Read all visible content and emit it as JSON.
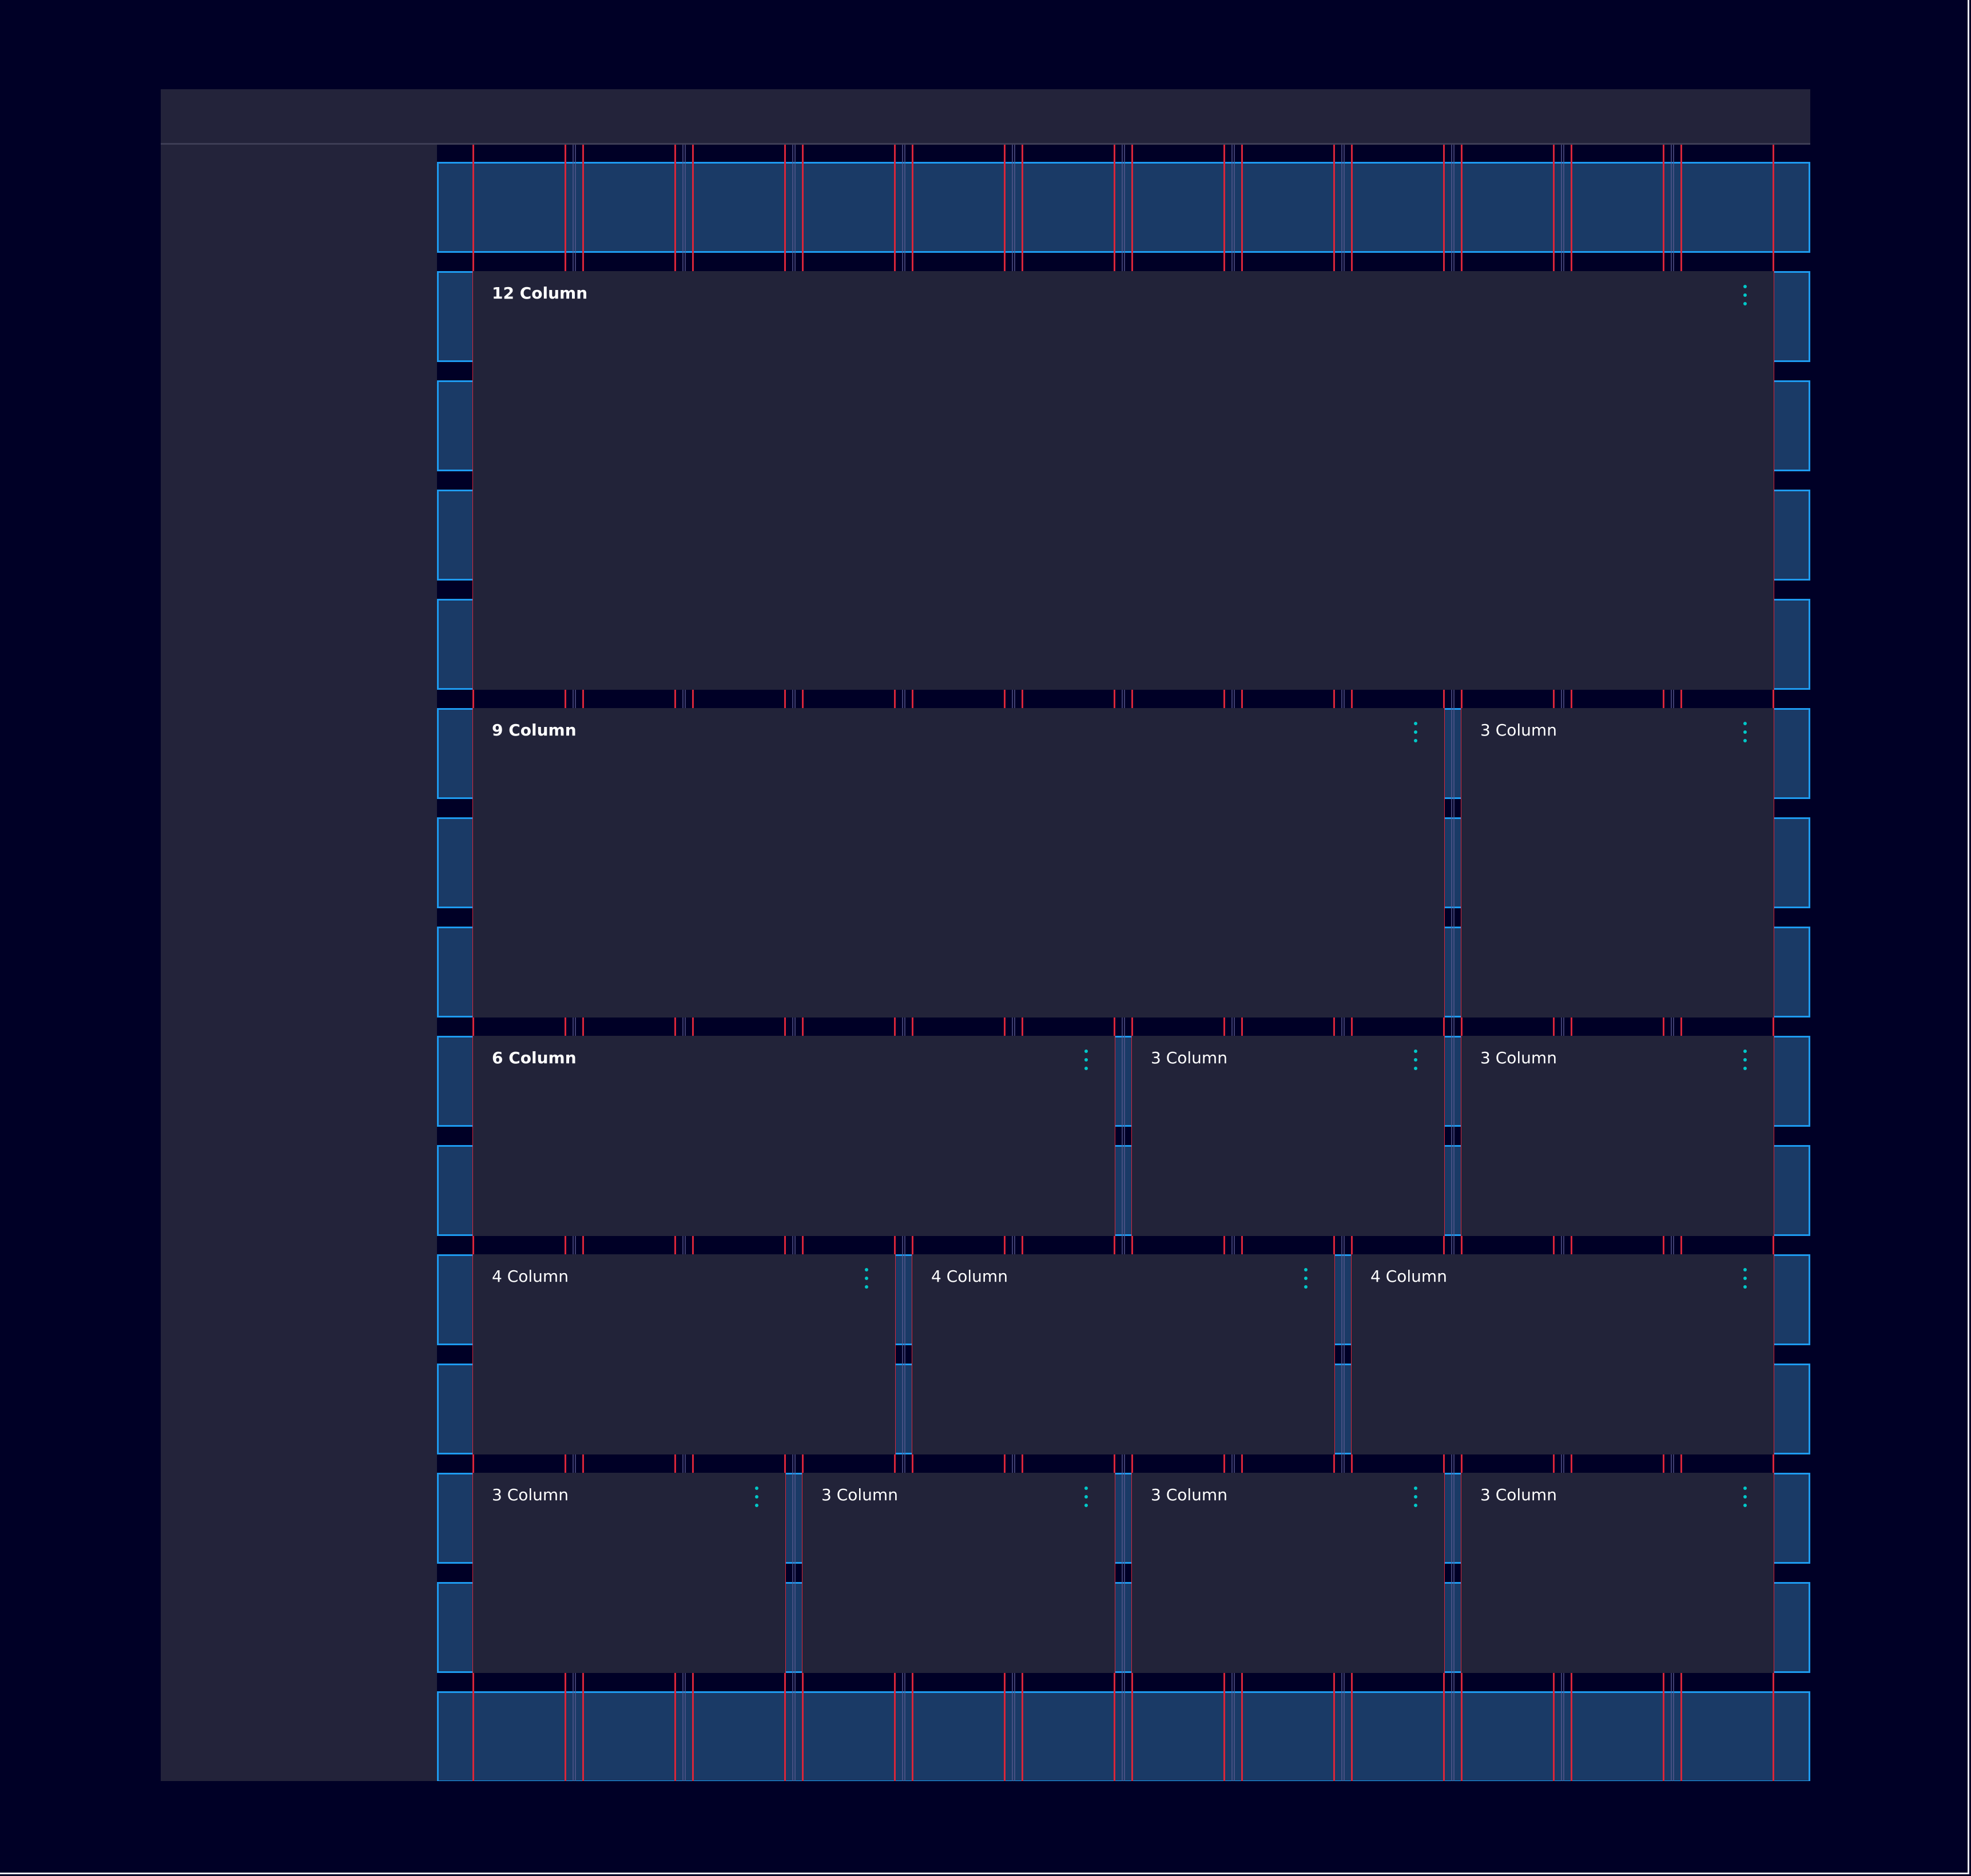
{
  "colors": {
    "background": "#000026",
    "surface": "#23233a",
    "card": "#222339",
    "grid_row_fill": "#1a3a66",
    "grid_row_border": "#1e9bf0",
    "column_guide": "#d9263a",
    "menu_icon": "#00c8c8"
  },
  "grid": {
    "columns": 12
  },
  "rows": [
    {
      "cards": [
        {
          "title": "12 Column",
          "icon": "kebab-menu-icon"
        }
      ]
    },
    {
      "cards": [
        {
          "title": "9 Column",
          "icon": "kebab-menu-icon"
        },
        {
          "title": "3 Column",
          "icon": "kebab-menu-icon"
        }
      ]
    },
    {
      "cards": [
        {
          "title": "6 Column",
          "icon": "kebab-menu-icon"
        },
        {
          "title": "3 Column",
          "icon": "kebab-menu-icon"
        },
        {
          "title": "3 Column",
          "icon": "kebab-menu-icon"
        }
      ]
    },
    {
      "cards": [
        {
          "title": "4 Column",
          "icon": "kebab-menu-icon"
        },
        {
          "title": "4 Column",
          "icon": "kebab-menu-icon"
        },
        {
          "title": "4 Column",
          "icon": "kebab-menu-icon"
        }
      ]
    },
    {
      "cards": [
        {
          "title": "3 Column",
          "icon": "kebab-menu-icon"
        },
        {
          "title": "3 Column",
          "icon": "kebab-menu-icon"
        },
        {
          "title": "3 Column",
          "icon": "kebab-menu-icon"
        },
        {
          "title": "3 Column",
          "icon": "kebab-menu-icon"
        }
      ]
    }
  ]
}
